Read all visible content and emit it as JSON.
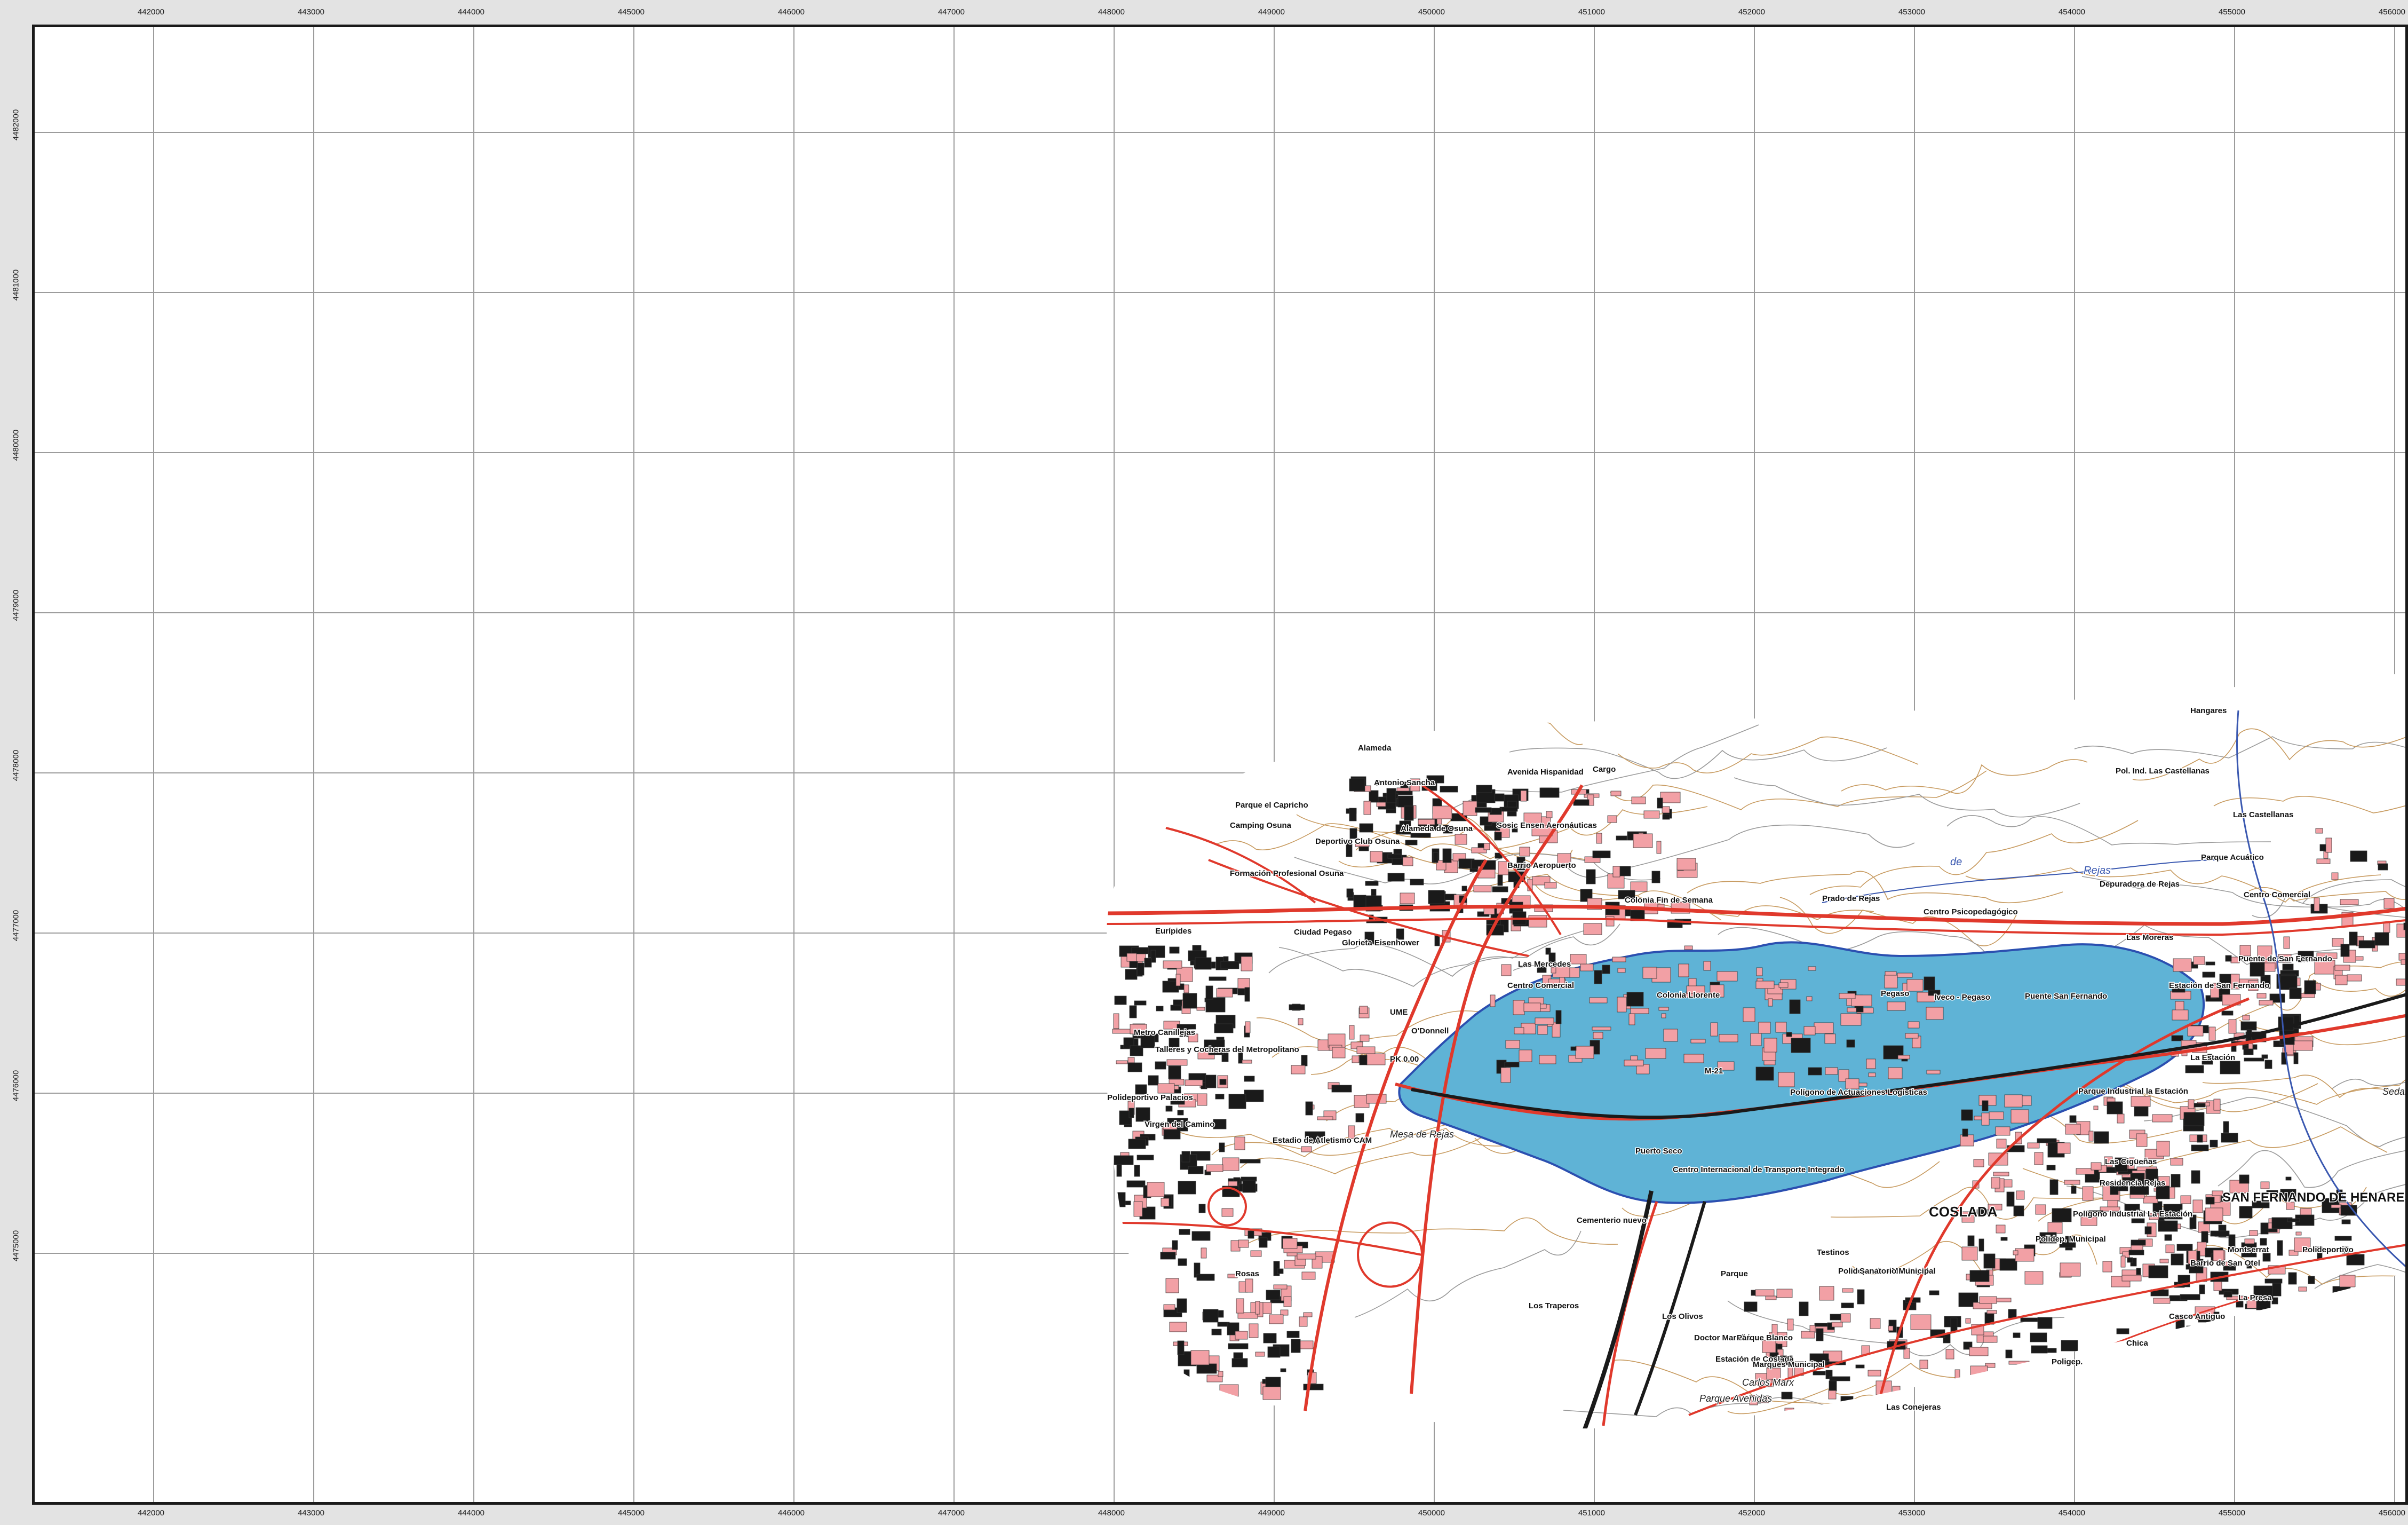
{
  "map": {
    "colors": {
      "flood": "#5fb3d6",
      "flood_edge": "#2b4fb0",
      "building": "#f2a0a5",
      "building_dark": "#1a1a1a",
      "road": "#e0392c",
      "contour": "#c79a5f",
      "track": "#9a9a9a",
      "grid": "#9c9c9c",
      "railway": "#8b2a1a"
    },
    "x_ticks": [
      "442000",
      "443000",
      "444000",
      "445000",
      "446000",
      "447000",
      "448000",
      "449000",
      "450000",
      "451000",
      "452000",
      "453000",
      "454000",
      "455000",
      "456000"
    ],
    "y_ticks": [
      "4482000",
      "4481000",
      "4480000",
      "4479000",
      "4478000",
      "4477000",
      "4476000",
      "4475000"
    ],
    "labels": [
      {
        "text": "Hangares",
        "icon": "none"
      },
      {
        "text": "Alameda"
      },
      {
        "text": "Cargo"
      },
      {
        "text": "Parque el Capricho"
      },
      {
        "text": "Antonio Sancha"
      },
      {
        "text": "Avenida Hispanidad"
      },
      {
        "text": "Pol. Ind. Las Castellanas"
      },
      {
        "text": "Camping Osuna"
      },
      {
        "text": "Deportivo Club Osuna"
      },
      {
        "text": "Alameda de Osuna"
      },
      {
        "text": "Sosic Ensen Aeronáuticas"
      },
      {
        "text": "Las Castellanas"
      },
      {
        "text": "Formación Profesional Osuna"
      },
      {
        "text": "Barrio Aeropuerto"
      },
      {
        "text": "Parque Acuático"
      },
      {
        "text": "Depuradora de Rejas"
      },
      {
        "text": "Centro Comercial"
      },
      {
        "text": "Colonia Fin de Semana"
      },
      {
        "text": "Prado de Rejas"
      },
      {
        "text": "Centro Psicopedagógico"
      },
      {
        "text": "Eurípides"
      },
      {
        "text": "Ciudad Pegaso"
      },
      {
        "text": "Glorieta Eisenhower"
      },
      {
        "text": "Las Mercedes"
      },
      {
        "text": "Las Moreras"
      },
      {
        "text": "Puente de San Fernando"
      },
      {
        "text": "Centro Comercial"
      },
      {
        "text": "Colonia Llorente"
      },
      {
        "text": "Pegaso"
      },
      {
        "text": "Iveco - Pegaso"
      },
      {
        "text": "Puente San Fernando"
      },
      {
        "text": "Estación de San Fernando"
      },
      {
        "text": "UME"
      },
      {
        "text": "O'Donnell"
      },
      {
        "text": "Metro Canillejas"
      },
      {
        "text": "Talleres y Cocheras del Metropolitano"
      },
      {
        "text": "La Estación"
      },
      {
        "text": "PK 0.00"
      },
      {
        "text": "M-21"
      },
      {
        "text": "Polígono de Actuaciones Logísticas"
      },
      {
        "text": "Parque Industrial la Estación"
      },
      {
        "text": "Polideportivo Palacios"
      },
      {
        "text": "Virgen del Camino"
      },
      {
        "text": "Estadio de Atletismo CAM"
      },
      {
        "text": "Mesa de Rejas"
      },
      {
        "text": "Puerto Seco"
      },
      {
        "text": "Centro Internacional de Transporte Integrado"
      },
      {
        "text": "Las Cigüeñas"
      },
      {
        "text": "Residencia Rejas"
      },
      {
        "text": "SAN FERNANDO DE HENARES"
      },
      {
        "text": "Cementerio nuevo"
      },
      {
        "text": "COSLADA"
      },
      {
        "text": "Polígono Industrial La Estación"
      },
      {
        "text": "Polidep. Municipal"
      },
      {
        "text": "Montserrat"
      },
      {
        "text": "Polideportivo"
      },
      {
        "text": "Testinos"
      },
      {
        "text": "Rosas"
      },
      {
        "text": "Polideportivo Municipal"
      },
      {
        "text": "Sanatorio Municipal"
      },
      {
        "text": "Barrio de San Otel"
      },
      {
        "text": "Los Traperos"
      },
      {
        "text": "Parque"
      },
      {
        "text": "Casco Antiguo"
      },
      {
        "text": "La Presa"
      },
      {
        "text": "Los Olivos"
      },
      {
        "text": "Doctor Marañón"
      },
      {
        "text": "Parque Blanco"
      },
      {
        "text": "Chica"
      },
      {
        "text": "Poligep."
      },
      {
        "text": "Estación de Coslada"
      },
      {
        "text": "Marqués Municipal"
      },
      {
        "text": "Carlos Marx"
      },
      {
        "text": "Parque Avenidas"
      },
      {
        "text": "Las Conejeras"
      },
      {
        "text": "Sedan"
      },
      {
        "text": "Rejas"
      },
      {
        "text": "de"
      }
    ]
  }
}
